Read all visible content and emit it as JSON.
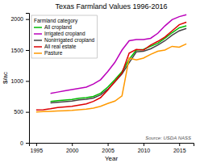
{
  "chart_data": {
    "type": "line",
    "title": "Texas Farmland Values 1996-2016",
    "xlabel": "Year",
    "ylabel": "$/ac",
    "legend_title": "Farmland category",
    "annotations": [
      "Source: USDA NASS"
    ],
    "x": [
      1995,
      1996,
      1997,
      1998,
      1999,
      2000,
      2001,
      2002,
      2003,
      2004,
      2005,
      2006,
      2007,
      2008,
      2009,
      2010,
      2011,
      2012,
      2013,
      2014,
      2015,
      2016
    ],
    "series": [
      {
        "name": "All cropland",
        "color": "#00bb00",
        "values": [
          null,
          null,
          670,
          680,
          690,
          700,
          720,
          730,
          750,
          800,
          900,
          1020,
          1150,
          1350,
          1500,
          1510,
          1560,
          1610,
          1690,
          1780,
          1860,
          1890
        ]
      },
      {
        "name": "Irrigated cropland",
        "color": "#bb00bb",
        "values": [
          null,
          null,
          800,
          820,
          840,
          860,
          880,
          900,
          950,
          1020,
          1150,
          1300,
          1500,
          1650,
          1670,
          1670,
          1690,
          1770,
          1890,
          1990,
          2040,
          2070
        ]
      },
      {
        "name": "Nonirrigated cropland",
        "color": "#444444",
        "values": [
          null,
          null,
          645,
          655,
          665,
          675,
          695,
          705,
          725,
          775,
          865,
          985,
          1115,
          1295,
          1470,
          1480,
          1520,
          1580,
          1650,
          1740,
          1810,
          1850
        ]
      },
      {
        "name": "All real estate",
        "color": "#dd0000",
        "values": [
          530,
          535,
          550,
          570,
          580,
          590,
          610,
          630,
          670,
          730,
          850,
          990,
          1130,
          1450,
          1510,
          1500,
          1580,
          1640,
          1710,
          1810,
          1910,
          1950
        ]
      },
      {
        "name": "Pasture",
        "color": "#ff9900",
        "values": [
          500,
          505,
          510,
          515,
          520,
          525,
          535,
          545,
          560,
          590,
          635,
          675,
          760,
          1370,
          1340,
          1370,
          1430,
          1480,
          1500,
          1560,
          1545,
          1600
        ]
      }
    ],
    "xlim": [
      1994,
      2017
    ],
    "ylim": [
      0,
      2100
    ],
    "xticks": [
      1995,
      2000,
      2005,
      2010,
      2015
    ],
    "yticks": [
      0,
      500,
      1000,
      1500,
      2000
    ],
    "grid": false,
    "legend": "upper left"
  }
}
